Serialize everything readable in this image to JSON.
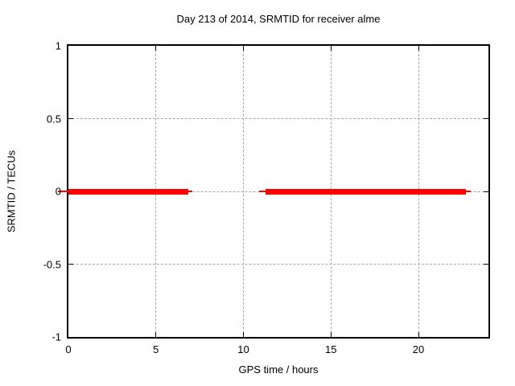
{
  "figure": {
    "background": "#ffffff",
    "border_color": "#000000",
    "text_color": "#000000"
  },
  "chart_data": {
    "type": "line",
    "title": "Day 213 of 2014, SRMTID for receiver alme",
    "xlabel": "GPS time / hours",
    "ylabel": "SRMTID / TECUs",
    "xlim": [
      0,
      24
    ],
    "ylim": [
      -1,
      1
    ],
    "xticks": [
      {
        "value": 0,
        "label": "0"
      },
      {
        "value": 5,
        "label": "5"
      },
      {
        "value": 10,
        "label": "10"
      },
      {
        "value": 15,
        "label": "15"
      },
      {
        "value": 20,
        "label": "20"
      }
    ],
    "yticks": [
      {
        "value": -1,
        "label": "-1"
      },
      {
        "value": -0.5,
        "label": "-0.5"
      },
      {
        "value": 0,
        "label": "0"
      },
      {
        "value": 0.5,
        "label": "0.5"
      },
      {
        "value": 1,
        "label": "1"
      }
    ],
    "grid": "dashed",
    "grid_color": "#a8a8a8",
    "legend": "off",
    "series": [
      {
        "name": "SRMTID",
        "color": "#ff0000",
        "y_value": 0,
        "line_segments": [
          {
            "x_start": -0.6,
            "x_end": 7.1,
            "width": "thin"
          },
          {
            "x_start": 10.9,
            "x_end": 23.0,
            "width": "thin"
          },
          {
            "x_start": 0.0,
            "x_end": 6.85,
            "width": "thick"
          },
          {
            "x_start": 11.25,
            "x_end": 22.7,
            "width": "thick"
          }
        ]
      }
    ]
  }
}
